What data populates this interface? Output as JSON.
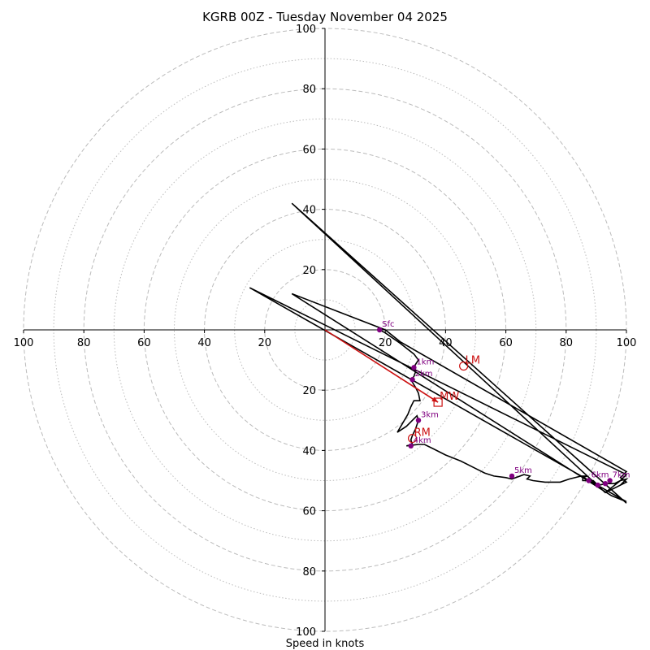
{
  "chart_data": {
    "type": "hodograph",
    "title": "KGRB 00Z - Tuesday November 04 2025",
    "xlabel": "Speed in knots",
    "max_speed": 100,
    "ring_major": [
      20,
      40,
      60,
      80,
      100
    ],
    "ring_minor": [
      10,
      30,
      50,
      70,
      90
    ],
    "x_ticks": [
      {
        "value": -100,
        "label": "100"
      },
      {
        "value": -80,
        "label": "80"
      },
      {
        "value": -60,
        "label": "60"
      },
      {
        "value": -40,
        "label": "40"
      },
      {
        "value": -20,
        "label": "20"
      },
      {
        "value": 20,
        "label": "20"
      },
      {
        "value": 40,
        "label": "40"
      },
      {
        "value": 60,
        "label": "60"
      },
      {
        "value": 80,
        "label": "80"
      },
      {
        "value": 100,
        "label": "100"
      }
    ],
    "y_ticks": [
      {
        "value": 100,
        "label": "100"
      },
      {
        "value": 80,
        "label": "80"
      },
      {
        "value": 60,
        "label": "60"
      },
      {
        "value": 40,
        "label": "40"
      },
      {
        "value": 20,
        "label": "20"
      },
      {
        "value": -20,
        "label": "20"
      },
      {
        "value": -40,
        "label": "40"
      },
      {
        "value": -60,
        "label": "60"
      },
      {
        "value": -80,
        "label": "80"
      },
      {
        "value": -100,
        "label": "100"
      }
    ],
    "trace": [
      [
        18.1,
        0
      ],
      [
        20,
        -1
      ],
      [
        25,
        -4.5
      ],
      [
        29.5,
        -8
      ],
      [
        31,
        -10
      ],
      [
        30,
        -11.5
      ],
      [
        29.5,
        -12.5
      ],
      [
        30,
        -14
      ],
      [
        29.5,
        -15.5
      ],
      [
        28.5,
        -16.5
      ],
      [
        30,
        -19
      ],
      [
        31,
        -21
      ],
      [
        31.5,
        -23.5
      ],
      [
        29.5,
        -23.5
      ],
      [
        28.5,
        -25.5
      ],
      [
        27.5,
        -28
      ],
      [
        24,
        -34
      ],
      [
        27,
        -32
      ],
      [
        30.5,
        -28.5
      ],
      [
        31,
        -30
      ],
      [
        30,
        -33
      ],
      [
        29,
        -35
      ],
      [
        28.5,
        -36.5
      ],
      [
        29,
        -38
      ],
      [
        27,
        -38.5
      ],
      [
        31,
        -38
      ],
      [
        33,
        -38
      ],
      [
        36,
        -39.5
      ],
      [
        40,
        -41.5
      ],
      [
        45,
        -43.5
      ],
      [
        50,
        -46
      ],
      [
        53,
        -47.5
      ],
      [
        56,
        -48.5
      ],
      [
        60,
        -49
      ],
      [
        62,
        -49.5
      ],
      [
        66,
        -48
      ],
      [
        68,
        -48.5
      ],
      [
        67,
        -49.5
      ],
      [
        69,
        -50
      ],
      [
        73,
        -50.5
      ],
      [
        78,
        -50.5
      ],
      [
        81,
        -49.5
      ],
      [
        85,
        -48.5
      ],
      [
        87,
        -48.5
      ],
      [
        85.5,
        -49
      ],
      [
        85.5,
        -50
      ],
      [
        89,
        -50
      ],
      [
        90,
        -51
      ],
      [
        91,
        -51.5
      ],
      [
        93,
        -51
      ],
      [
        96,
        -51
      ],
      [
        98,
        -50
      ],
      [
        100,
        -49.5
      ],
      [
        98,
        -51.5
      ],
      [
        96,
        -52.5
      ],
      [
        93,
        -54
      ],
      [
        98,
        -50
      ],
      [
        100,
        -48
      ],
      [
        -25,
        14
      ],
      [
        100,
        -57
      ],
      [
        95,
        -55
      ],
      [
        -11,
        12
      ],
      [
        20,
        0
      ],
      [
        25,
        -4
      ],
      [
        100,
        -47
      ],
      [
        98,
        -49
      ],
      [
        100,
        -50.5
      ],
      [
        93,
        -54
      ],
      [
        -11,
        42
      ],
      [
        100,
        -57.5
      ]
    ],
    "height_points": [
      {
        "label": "Sfc",
        "u": 18.1,
        "v": 0
      },
      {
        "label": "1km",
        "u": 29.5,
        "v": -12.5
      },
      {
        "label": "2km",
        "u": 29,
        "v": -16.5
      },
      {
        "label": "3km",
        "u": 31,
        "v": -30
      },
      {
        "label": "4km",
        "u": 28.5,
        "v": -38.5
      },
      {
        "label": "5km",
        "u": 62,
        "v": -48.5
      },
      {
        "label": "6km",
        "u": 87.5,
        "v": -50
      },
      {
        "label": "",
        "u": 90.5,
        "v": -51.5
      },
      {
        "label": "",
        "u": 93,
        "v": -51
      },
      {
        "label": "7km",
        "u": 94.5,
        "v": -50
      }
    ],
    "storm_motion": {
      "mean_wind": {
        "label": "MW",
        "u": 37.5,
        "v": -24
      },
      "left_mover": {
        "label": "LM",
        "u": 46,
        "v": -12
      },
      "right_mover": {
        "label": "RM",
        "u": 29,
        "v": -36
      }
    },
    "colors": {
      "trace": "#000000",
      "points": "#800080",
      "motion": "#cc1111",
      "grid": "#bbbbbb"
    }
  }
}
